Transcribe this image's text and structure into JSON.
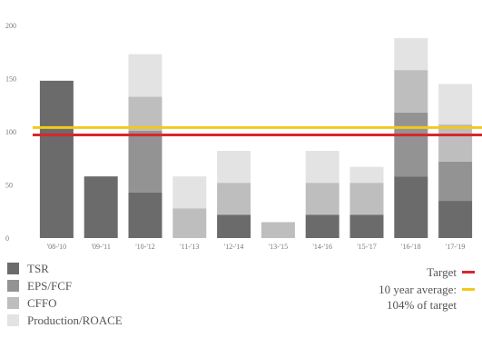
{
  "chart_data": {
    "type": "bar",
    "stacked": true,
    "categories": [
      "'08-'10",
      "'09-'11",
      "'10-'12",
      "'11-'13",
      "'12-'14",
      "'13-'15",
      "'14-'16",
      "'15-'17",
      "'16-'18",
      "'17-'19"
    ],
    "series": [
      {
        "name": "TSR",
        "color": "#6b6b6b",
        "values": [
          148,
          58,
          43,
          0,
          22,
          0,
          22,
          22,
          58,
          35
        ]
      },
      {
        "name": "EPS/FCF",
        "color": "#939393",
        "values": [
          0,
          0,
          58,
          0,
          0,
          0,
          0,
          0,
          60,
          37
        ]
      },
      {
        "name": "CFFO",
        "color": "#bebebe",
        "values": [
          0,
          0,
          32,
          28,
          30,
          15,
          30,
          30,
          40,
          35
        ]
      },
      {
        "name": "Production/ROACE",
        "color": "#e3e3e3",
        "values": [
          0,
          0,
          40,
          30,
          30,
          0,
          30,
          15,
          30,
          38
        ]
      }
    ],
    "yticks": [
      0,
      50,
      100,
      150,
      200
    ],
    "ylim": [
      0,
      200
    ],
    "reference_lines": [
      {
        "name": "Target",
        "value": 97,
        "color": "#d9262e"
      },
      {
        "name": "10 year average:",
        "value": 104,
        "color": "#f2c918"
      }
    ],
    "note": "104% of target",
    "grid": false
  }
}
